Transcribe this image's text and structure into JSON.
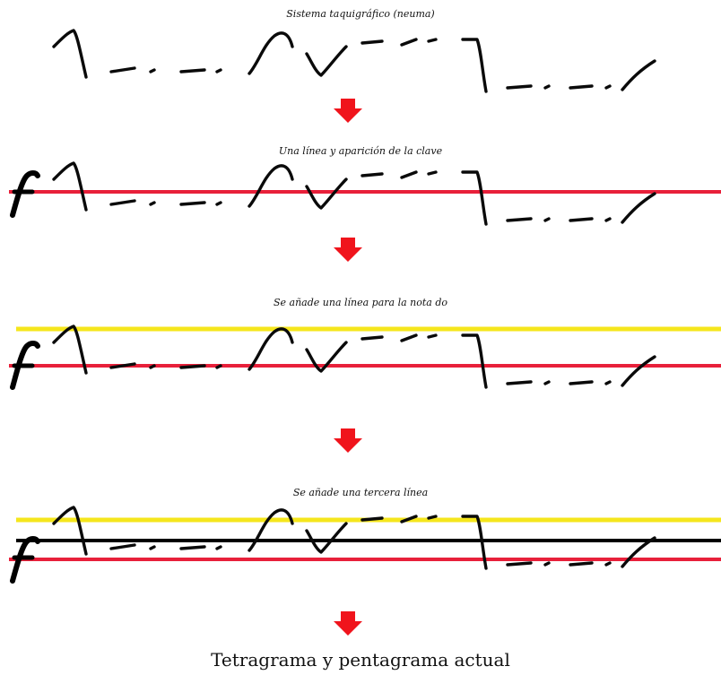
{
  "stages": [
    {
      "title": "Sistema taquigráfico (neuma)",
      "lines": []
    },
    {
      "title": "Una línea y aparición de la clave",
      "lines": [
        "red"
      ],
      "clef": "f"
    },
    {
      "title": "Se añade una línea para la nota do",
      "lines": [
        "yellow",
        "red"
      ],
      "clef": "f"
    },
    {
      "title": "Se añade una tercera línea",
      "lines": [
        "yellow",
        "black",
        "red"
      ],
      "clef": "f"
    }
  ],
  "final": {
    "title": "Tetragrama y pentagrama actual"
  },
  "colors": {
    "red_line": "#e8203a",
    "yellow_line": "#f5e61c",
    "black_line": "#000000",
    "arrow": "#f0141c",
    "ink": "#0a0a0a"
  },
  "icons": {
    "arrow": "down-arrow-icon",
    "clef": "f-clef-icon"
  }
}
